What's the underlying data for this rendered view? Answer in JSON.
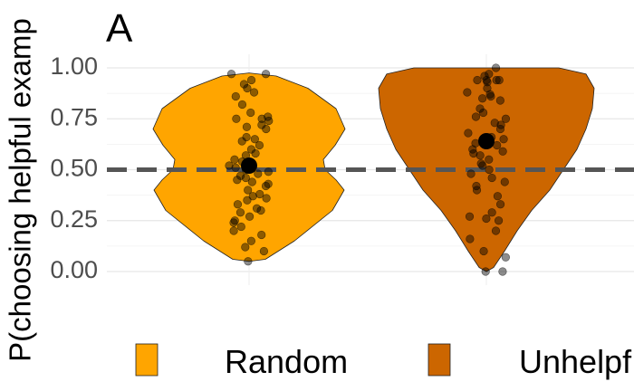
{
  "chart_data": {
    "type": "violin",
    "panel_label": "A",
    "ylabel": "P(choosing helpful examp",
    "ylim": [
      0,
      1
    ],
    "yticks": [
      "0.00",
      "0.25",
      "0.50",
      "0.75",
      "1.00"
    ],
    "reference_line": 0.5,
    "grid": true,
    "legend_position": "bottom",
    "categories": [
      "Random",
      "Unhelpful"
    ],
    "legend_labels": [
      "Random",
      "Unhelpf"
    ],
    "colors": {
      "Random": "#FFA500",
      "Unhelpful": "#CC6600",
      "points": "#000000",
      "refline": "#555555"
    },
    "means": [
      0.52,
      0.64
    ],
    "mean_errors": [
      0.025,
      0.03
    ],
    "points": [
      [
        0.97,
        0.97,
        0.94,
        0.92,
        0.9,
        0.88,
        0.86,
        0.82,
        0.78,
        0.76,
        0.75,
        0.75,
        0.74,
        0.72,
        0.71,
        0.7,
        0.66,
        0.65,
        0.64,
        0.62,
        0.6,
        0.58,
        0.57,
        0.55,
        0.54,
        0.53,
        0.52,
        0.51,
        0.5,
        0.49,
        0.48,
        0.47,
        0.46,
        0.45,
        0.44,
        0.43,
        0.42,
        0.4,
        0.38,
        0.37,
        0.36,
        0.35,
        0.33,
        0.31,
        0.3,
        0.29,
        0.27,
        0.25,
        0.24,
        0.22,
        0.2,
        0.18,
        0.15,
        0.12,
        0.1,
        0.05
      ],
      [
        1.0,
        0.97,
        0.96,
        0.94,
        0.94,
        0.94,
        0.94,
        0.93,
        0.9,
        0.88,
        0.87,
        0.86,
        0.85,
        0.84,
        0.8,
        0.78,
        0.76,
        0.75,
        0.73,
        0.72,
        0.7,
        0.68,
        0.66,
        0.65,
        0.63,
        0.62,
        0.6,
        0.59,
        0.58,
        0.57,
        0.55,
        0.53,
        0.52,
        0.5,
        0.48,
        0.46,
        0.44,
        0.42,
        0.4,
        0.37,
        0.33,
        0.29,
        0.27,
        0.26,
        0.25,
        0.2,
        0.16,
        0.1,
        0.07,
        0.0,
        0.0
      ]
    ]
  }
}
